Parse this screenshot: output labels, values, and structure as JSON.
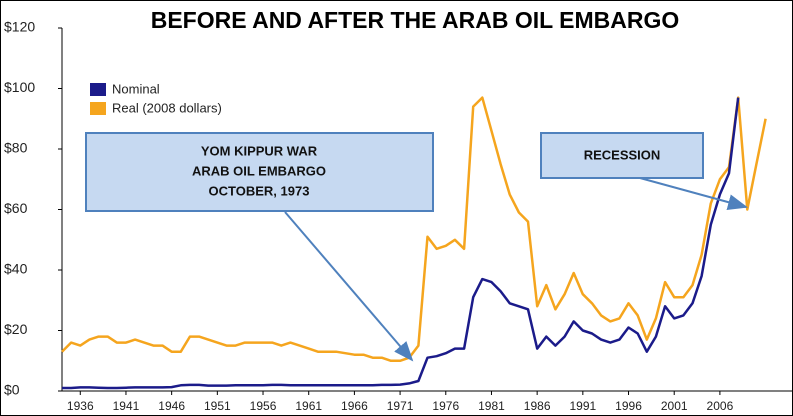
{
  "chart_data": {
    "type": "line",
    "title": "BEFORE AND AFTER THE ARAB OIL EMBARGO",
    "x": [
      1934,
      1935,
      1936,
      1937,
      1938,
      1939,
      1940,
      1941,
      1942,
      1943,
      1944,
      1945,
      1946,
      1947,
      1948,
      1949,
      1950,
      1951,
      1952,
      1953,
      1954,
      1955,
      1956,
      1957,
      1958,
      1959,
      1960,
      1961,
      1962,
      1963,
      1964,
      1965,
      1966,
      1967,
      1968,
      1969,
      1970,
      1971,
      1972,
      1973,
      1974,
      1975,
      1976,
      1977,
      1978,
      1979,
      1980,
      1981,
      1982,
      1983,
      1984,
      1985,
      1986,
      1987,
      1988,
      1989,
      1990,
      1991,
      1992,
      1993,
      1994,
      1995,
      1996,
      1997,
      1998,
      1999,
      2000,
      2001,
      2002,
      2003,
      2004,
      2005,
      2006,
      2007,
      2008,
      2009,
      2010,
      2011
    ],
    "series": [
      {
        "name": "Nominal",
        "color": "#1b1b8a",
        "values": [
          1,
          1,
          1.2,
          1.2,
          1.1,
          1,
          1,
          1.1,
          1.2,
          1.2,
          1.2,
          1.2,
          1.3,
          1.9,
          2,
          2,
          1.8,
          1.8,
          1.8,
          1.9,
          1.9,
          1.9,
          1.9,
          2,
          2,
          1.9,
          1.9,
          1.9,
          1.9,
          1.9,
          1.9,
          1.9,
          1.9,
          1.9,
          1.9,
          2,
          2,
          2.1,
          2.5,
          3.3,
          11,
          11.5,
          12.5,
          14,
          14,
          31,
          37,
          36,
          33,
          29,
          28,
          27,
          14,
          18,
          15,
          18,
          23,
          20,
          19,
          17,
          16,
          17,
          21,
          19,
          13,
          18,
          28,
          24,
          25,
          29,
          38,
          55,
          65,
          72,
          97,
          null,
          null,
          null
        ]
      },
      {
        "name": "Real (2008 dollars)",
        "color": "#f5a51e",
        "values": [
          13,
          16,
          15,
          17,
          18,
          18,
          16,
          16,
          17,
          16,
          15,
          15,
          13,
          13,
          18,
          18,
          17,
          16,
          15,
          15,
          16,
          16,
          16,
          16,
          15,
          16,
          15,
          14,
          13,
          13,
          13,
          12.5,
          12,
          12,
          11,
          11,
          10,
          10,
          11,
          15,
          51,
          47,
          48,
          50,
          47,
          94,
          97,
          86,
          75,
          65,
          59,
          56,
          28,
          35,
          27,
          32,
          39,
          32,
          29,
          25,
          23,
          24,
          29,
          25,
          17,
          24,
          36,
          31,
          31,
          35,
          45,
          62,
          70,
          74,
          97,
          60,
          75,
          90
        ]
      }
    ],
    "xlim": [
      1934,
      2014
    ],
    "xticks": [
      1936,
      1941,
      1946,
      1951,
      1956,
      1961,
      1966,
      1971,
      1976,
      1981,
      1986,
      1991,
      1996,
      2001,
      2006
    ],
    "ylim": [
      0,
      120
    ],
    "yticks": [
      {
        "value": 0,
        "label": "$0"
      },
      {
        "value": 20,
        "label": "$20"
      },
      {
        "value": 40,
        "label": "$40"
      },
      {
        "value": 60,
        "label": "$60"
      },
      {
        "value": 80,
        "label": "$80"
      },
      {
        "value": 100,
        "label": "$100"
      },
      {
        "value": 120,
        "label": "$120"
      }
    ],
    "grid": false,
    "legend": "upper left",
    "annotations": [
      {
        "lines": [
          "YOM KIPPUR WAR",
          "ARAB OIL EMBARGO",
          "OCTOBER, 1973"
        ]
      },
      {
        "lines": [
          "RECESSION"
        ]
      }
    ]
  }
}
